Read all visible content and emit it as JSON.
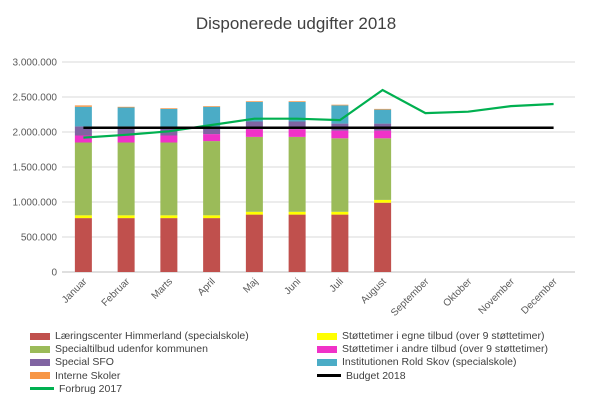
{
  "chart_data": {
    "type": "bar",
    "title": "Disponerede udgifter 2018",
    "categories": [
      "Januar",
      "Februar",
      "Marts",
      "April",
      "Maj",
      "Juni",
      "Juli",
      "August",
      "September",
      "Oktober",
      "November",
      "December"
    ],
    "y_ticks": [
      "0",
      "500.000",
      "1.000.000",
      "1.500.000",
      "2.000.000",
      "2.500.000",
      "3.000.000"
    ],
    "ylim": [
      0,
      3000000
    ],
    "stacked": true,
    "grid": true,
    "legend_position": "bottom",
    "series": [
      {
        "name": "Læringscenter Himmerland (specialskole)",
        "color": "#c0504d",
        "values": [
          770000,
          770000,
          770000,
          770000,
          820000,
          820000,
          820000,
          990000,
          null,
          null,
          null,
          null
        ]
      },
      {
        "name": "Støttetimer i egne tilbud (over 9 støttetimer)",
        "color": "#ffff00",
        "values": [
          40000,
          40000,
          40000,
          40000,
          40000,
          40000,
          40000,
          40000,
          null,
          null,
          null,
          null
        ]
      },
      {
        "name": "Specialtilbud udenfor kommunen",
        "color": "#9bbb59",
        "values": [
          1040000,
          1040000,
          1040000,
          1060000,
          1070000,
          1070000,
          1050000,
          880000,
          null,
          null,
          null,
          null
        ]
      },
      {
        "name": "Støttetimer i andre tilbud (over 9 støttetimer)",
        "color": "#f032c8",
        "values": [
          100000,
          100000,
          100000,
          100000,
          110000,
          110000,
          110000,
          110000,
          null,
          null,
          null,
          null
        ]
      },
      {
        "name": "Special SFO",
        "color": "#8064a2",
        "values": [
          130000,
          130000,
          110000,
          110000,
          110000,
          110000,
          100000,
          100000,
          null,
          null,
          null,
          null
        ]
      },
      {
        "name": "Institutionen Rold Skov (specialskole)",
        "color": "#4bacc6",
        "values": [
          280000,
          270000,
          270000,
          280000,
          280000,
          280000,
          260000,
          200000,
          null,
          null,
          null,
          null
        ]
      },
      {
        "name": "Interne Skoler",
        "color": "#f79646",
        "values": [
          20000,
          10000,
          10000,
          10000,
          10000,
          10000,
          10000,
          10000,
          null,
          null,
          null,
          null
        ]
      }
    ],
    "lines": [
      {
        "name": "Forbrug 2017",
        "color": "#00b050",
        "values": [
          1920000,
          1960000,
          2010000,
          2100000,
          2190000,
          2190000,
          2170000,
          2600000,
          2270000,
          2290000,
          2370000,
          2400000
        ]
      },
      {
        "name": "Budget 2018",
        "color": "#000000",
        "values": [
          2060000,
          2060000,
          2060000,
          2060000,
          2060000,
          2060000,
          2060000,
          2060000,
          2060000,
          2060000,
          2060000,
          2060000
        ]
      }
    ]
  }
}
